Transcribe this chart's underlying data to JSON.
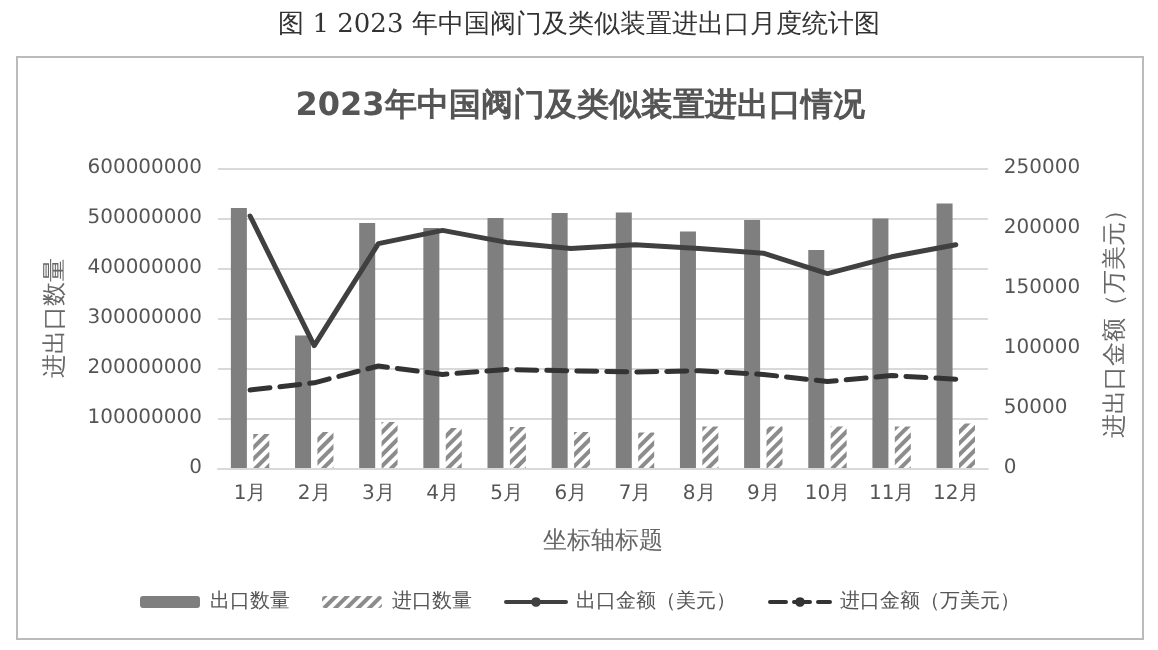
{
  "chart_data": {
    "type": "bar",
    "title": "图 1 2023 年中国阀门及类似装置进出口月度统计图",
    "subtitle": "2023年中国阀门及类似装置进出口情况",
    "xlabel": "坐标轴标题",
    "ylabel": "进出口数量",
    "y2label": "进出口金额（万美元）",
    "categories": [
      "1月",
      "2月",
      "3月",
      "4月",
      "5月",
      "6月",
      "7月",
      "8月",
      "9月",
      "10月",
      "11月",
      "12月"
    ],
    "series": [
      {
        "name": "出口数量",
        "color": "#7f7f7f",
        "values": [
          520000000,
          265000000,
          490000000,
          480000000,
          500000000,
          510000000,
          511000000,
          473000000,
          496000000,
          436000000,
          499000000,
          529000000
        ]
      },
      {
        "name": "进口数量",
        "color": "#8c8c8c",
        "values": [
          68000000,
          72000000,
          92000000,
          80000000,
          82000000,
          72000000,
          71000000,
          83000000,
          83000000,
          83000000,
          83000000,
          89000000
        ]
      },
      {
        "name": "出口金额（美元）",
        "type": "line",
        "axis": "y2",
        "line_style": "solid",
        "color": "#404040",
        "values": [
          210000,
          102000,
          187000,
          198000,
          188000,
          183000,
          186000,
          183000,
          179000,
          162000,
          176000,
          186000
        ]
      },
      {
        "name": "进口金额（万美元）",
        "type": "line",
        "axis": "y2",
        "line_style": "dashed",
        "color": "#333333",
        "values": [
          65000,
          71000,
          85000,
          78000,
          82000,
          81000,
          80000,
          81000,
          78000,
          72000,
          77000,
          74000
        ]
      }
    ],
    "ylim": [
      0,
      600000000
    ],
    "yticks": [
      0,
      100000000,
      200000000,
      300000000,
      400000000,
      500000000,
      600000000
    ],
    "y2lim": [
      0,
      250000
    ],
    "y2ticks": [
      0,
      50000,
      100000,
      150000,
      200000,
      250000
    ],
    "grid": "y",
    "legend": "bottom",
    "marker": "none"
  }
}
